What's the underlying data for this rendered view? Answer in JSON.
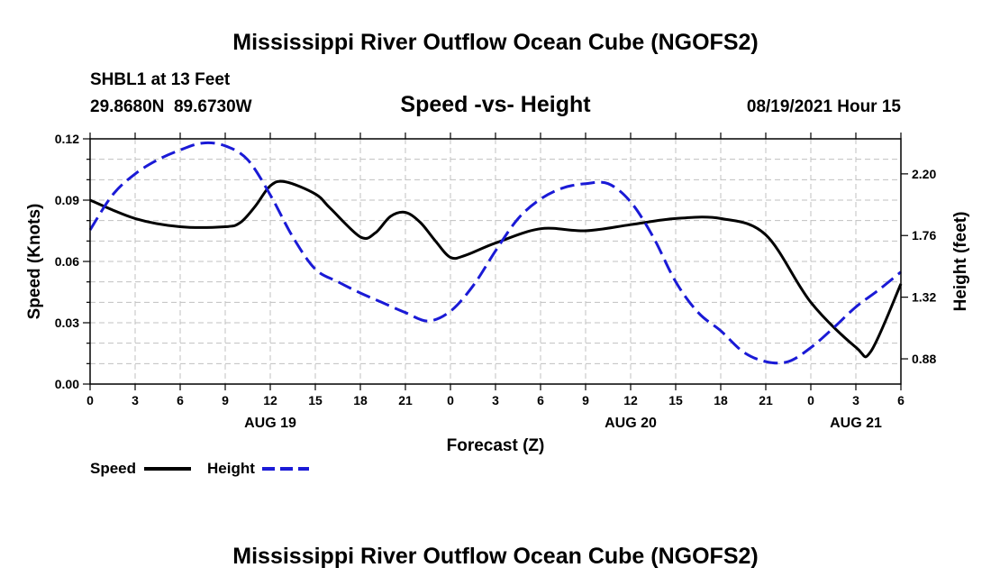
{
  "header": {
    "title": "Mississippi River Outflow Ocean Cube (NGOFS2)",
    "station": "SHBL1 at 13 Feet",
    "location": "29.8680N  89.6730W",
    "datetime": "08/19/2021 Hour 15"
  },
  "footer": {
    "title": "Mississippi River Outflow Ocean Cube (NGOFS2)"
  },
  "colors": {
    "speed": "#000000",
    "height": "#1a1ad6",
    "grid": "#c0c0c0"
  },
  "chart_data": {
    "type": "line",
    "title": "Speed -vs- Height",
    "xlabel": "Forecast (Z)",
    "ylabel": "Speed (Knots)",
    "y2label": "Height (feet)",
    "xlim": [
      0,
      54
    ],
    "ylim": [
      0,
      0.12
    ],
    "y2lim": [
      0.7,
      2.45
    ],
    "x_ticks": [
      0,
      3,
      6,
      9,
      12,
      15,
      18,
      21,
      24,
      27,
      30,
      33,
      36,
      39,
      42,
      45,
      48,
      51,
      54
    ],
    "x_tick_labels": [
      "0",
      "3",
      "6",
      "9",
      "12",
      "15",
      "18",
      "21",
      "0",
      "3",
      "6",
      "9",
      "12",
      "15",
      "18",
      "21",
      "0",
      "3",
      "6"
    ],
    "date_labels": [
      {
        "x": 12,
        "label": "AUG 19"
      },
      {
        "x": 36,
        "label": "AUG 20"
      },
      {
        "x": 51,
        "label": "AUG 21"
      }
    ],
    "y_ticks": [
      0,
      0.03,
      0.06,
      0.09,
      0.12
    ],
    "y_tick_labels": [
      "0.00",
      "0.03",
      "0.06",
      "0.09",
      "0.12"
    ],
    "y2_ticks": [
      0.88,
      1.32,
      1.76,
      2.2
    ],
    "y2_tick_labels": [
      "0.88",
      "1.32",
      "1.76",
      "2.20"
    ],
    "grid": true,
    "legend_position": "bottom-left",
    "series": [
      {
        "name": "Speed",
        "axis": "left",
        "style": "solid",
        "x": [
          0,
          3,
          6,
          9,
          10,
          11,
          12,
          13,
          15,
          16,
          18,
          19,
          20,
          21,
          22,
          23,
          24,
          25,
          27,
          30,
          33,
          36,
          39,
          42,
          45,
          48,
          51,
          52,
          54
        ],
        "values": [
          0.09,
          0.081,
          0.077,
          0.077,
          0.079,
          0.087,
          0.097,
          0.099,
          0.093,
          0.086,
          0.072,
          0.074,
          0.082,
          0.084,
          0.079,
          0.07,
          0.062,
          0.063,
          0.069,
          0.076,
          0.075,
          0.078,
          0.081,
          0.081,
          0.073,
          0.04,
          0.018,
          0.016,
          0.049
        ]
      },
      {
        "name": "Height",
        "axis": "right",
        "style": "dashed",
        "x": [
          0,
          1.5,
          3,
          4.5,
          6,
          7.5,
          9,
          10.5,
          12,
          13.5,
          15,
          16.5,
          18,
          19.5,
          21,
          22.5,
          24,
          25.5,
          27,
          28.5,
          30,
          31.5,
          33,
          34.5,
          36,
          37.5,
          39,
          40.5,
          42,
          43.5,
          45,
          46.5,
          48,
          49.5,
          51,
          52.5,
          54
        ],
        "values": [
          1.8,
          2.05,
          2.2,
          2.3,
          2.37,
          2.42,
          2.4,
          2.3,
          2.05,
          1.75,
          1.52,
          1.43,
          1.35,
          1.28,
          1.21,
          1.15,
          1.22,
          1.4,
          1.65,
          1.88,
          2.02,
          2.1,
          2.13,
          2.13,
          2.0,
          1.75,
          1.43,
          1.21,
          1.08,
          0.93,
          0.86,
          0.86,
          0.96,
          1.1,
          1.25,
          1.37,
          1.5
        ]
      }
    ],
    "legend": [
      {
        "label": "Speed",
        "series": "Speed"
      },
      {
        "label": "Height",
        "series": "Height"
      }
    ]
  }
}
